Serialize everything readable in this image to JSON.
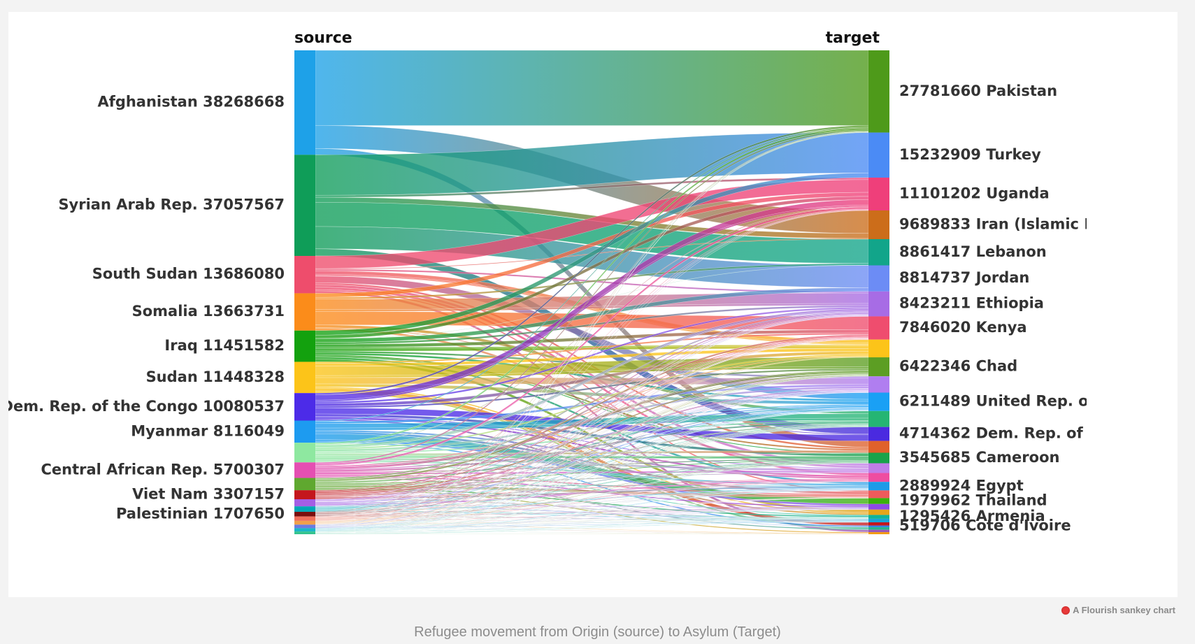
{
  "chart_data": {
    "type": "sankey",
    "source_header": "source",
    "target_header": "target",
    "sources": [
      {
        "name": "Afghanistan",
        "value": 38268668,
        "color": "#1ea1e8"
      },
      {
        "name": "Syrian Arab Rep.",
        "value": 37057567,
        "color": "#0f9d58"
      },
      {
        "name": "South Sudan",
        "value": 13686080,
        "color": "#ee4d6c"
      },
      {
        "name": "Somalia",
        "value": 13663731,
        "color": "#fb8c1a"
      },
      {
        "name": "Iraq",
        "value": 11451582,
        "color": "#13a10e"
      },
      {
        "name": "Sudan",
        "value": 11448328,
        "color": "#fcc419"
      },
      {
        "name": "Dem. Rep. of the Congo",
        "value": 10080537,
        "color": "#4c2be8"
      },
      {
        "name": "Myanmar",
        "value": 8116049,
        "color": "#1d9bf0"
      },
      {
        "name": "",
        "value": 7200000,
        "color": "#8ee8a0"
      },
      {
        "name": "Central African Rep.",
        "value": 5700307,
        "color": "#e54fb2"
      },
      {
        "name": "",
        "value": 4500000,
        "color": "#5fa82f"
      },
      {
        "name": "Viet Nam",
        "value": 3307157,
        "color": "#c4161c"
      },
      {
        "name": "",
        "value": 2600000,
        "color": "#a45ee5"
      },
      {
        "name": "",
        "value": 2000000,
        "color": "#00a7b5"
      },
      {
        "name": "Palestinian",
        "value": 1707650,
        "color": "#7a0e0e"
      },
      {
        "name": "",
        "value": 1600000,
        "color": "#ef6e5b"
      },
      {
        "name": "",
        "value": 1400000,
        "color": "#f0a04b"
      },
      {
        "name": "",
        "value": 1300000,
        "color": "#6b7be0"
      },
      {
        "name": "",
        "value": 1200000,
        "color": "#1ab6c7"
      },
      {
        "name": "",
        "value": 1000000,
        "color": "#34c38f"
      }
    ],
    "targets": [
      {
        "name": "Pakistan",
        "value": 27781660,
        "color": "#4e9a1a"
      },
      {
        "name": "Turkey",
        "value": 15232909,
        "color": "#4b8bf5"
      },
      {
        "name": "Uganda",
        "value": 11101202,
        "color": "#ef3f7a"
      },
      {
        "name": "Iran (Islamic Re",
        "value": 9689833,
        "color": "#cc6d1a"
      },
      {
        "name": "Lebanon",
        "value": 8861417,
        "color": "#12a58a"
      },
      {
        "name": "Jordan",
        "value": 8814737,
        "color": "#6c8cf5"
      },
      {
        "name": "Ethiopia",
        "value": 8423211,
        "color": "#a76ce5"
      },
      {
        "name": "Kenya",
        "value": 7846020,
        "color": "#ef4d6e"
      },
      {
        "name": "",
        "value": 6000000,
        "color": "#fcc419"
      },
      {
        "name": "Chad",
        "value": 6422346,
        "color": "#5c9e23"
      },
      {
        "name": "",
        "value": 5500000,
        "color": "#b07ef0"
      },
      {
        "name": "United Rep. of T",
        "value": 6211489,
        "color": "#1aa0f5"
      },
      {
        "name": "",
        "value": 5400000,
        "color": "#25b573"
      },
      {
        "name": "Dem. Rep. of th",
        "value": 4714362,
        "color": "#4a2ae0"
      },
      {
        "name": "",
        "value": 4000000,
        "color": "#e0612b"
      },
      {
        "name": "Cameroon",
        "value": 3545685,
        "color": "#18a34a"
      },
      {
        "name": "",
        "value": 3300000,
        "color": "#c07de8"
      },
      {
        "name": "",
        "value": 3000000,
        "color": "#ef4da0"
      },
      {
        "name": "Egypt",
        "value": 2889924,
        "color": "#1e9be8"
      },
      {
        "name": "",
        "value": 2600000,
        "color": "#ef5b5b"
      },
      {
        "name": "Thailand",
        "value": 1979962,
        "color": "#3bb10a"
      },
      {
        "name": "",
        "value": 1900000,
        "color": "#8e4ae5"
      },
      {
        "name": "",
        "value": 1800000,
        "color": "#e5a51a"
      },
      {
        "name": "Armenia",
        "value": 1295426,
        "color": "#10b39a"
      },
      {
        "name": "",
        "value": 1200000,
        "color": "#1aa5d8"
      },
      {
        "name": "",
        "value": 1100000,
        "color": "#c5161c"
      },
      {
        "name": "Cote d'Ivoire",
        "value": 519706,
        "color": "#2a7ae8"
      },
      {
        "name": "",
        "value": 900000,
        "color": "#28b48c"
      },
      {
        "name": "",
        "value": 800000,
        "color": "#9b59b6"
      },
      {
        "name": "",
        "value": 700000,
        "color": "#f39c12"
      }
    ]
  },
  "credit": "A Flourish sankey chart",
  "caption": "Refugee movement from Origin (source) to Asylum (Target)"
}
